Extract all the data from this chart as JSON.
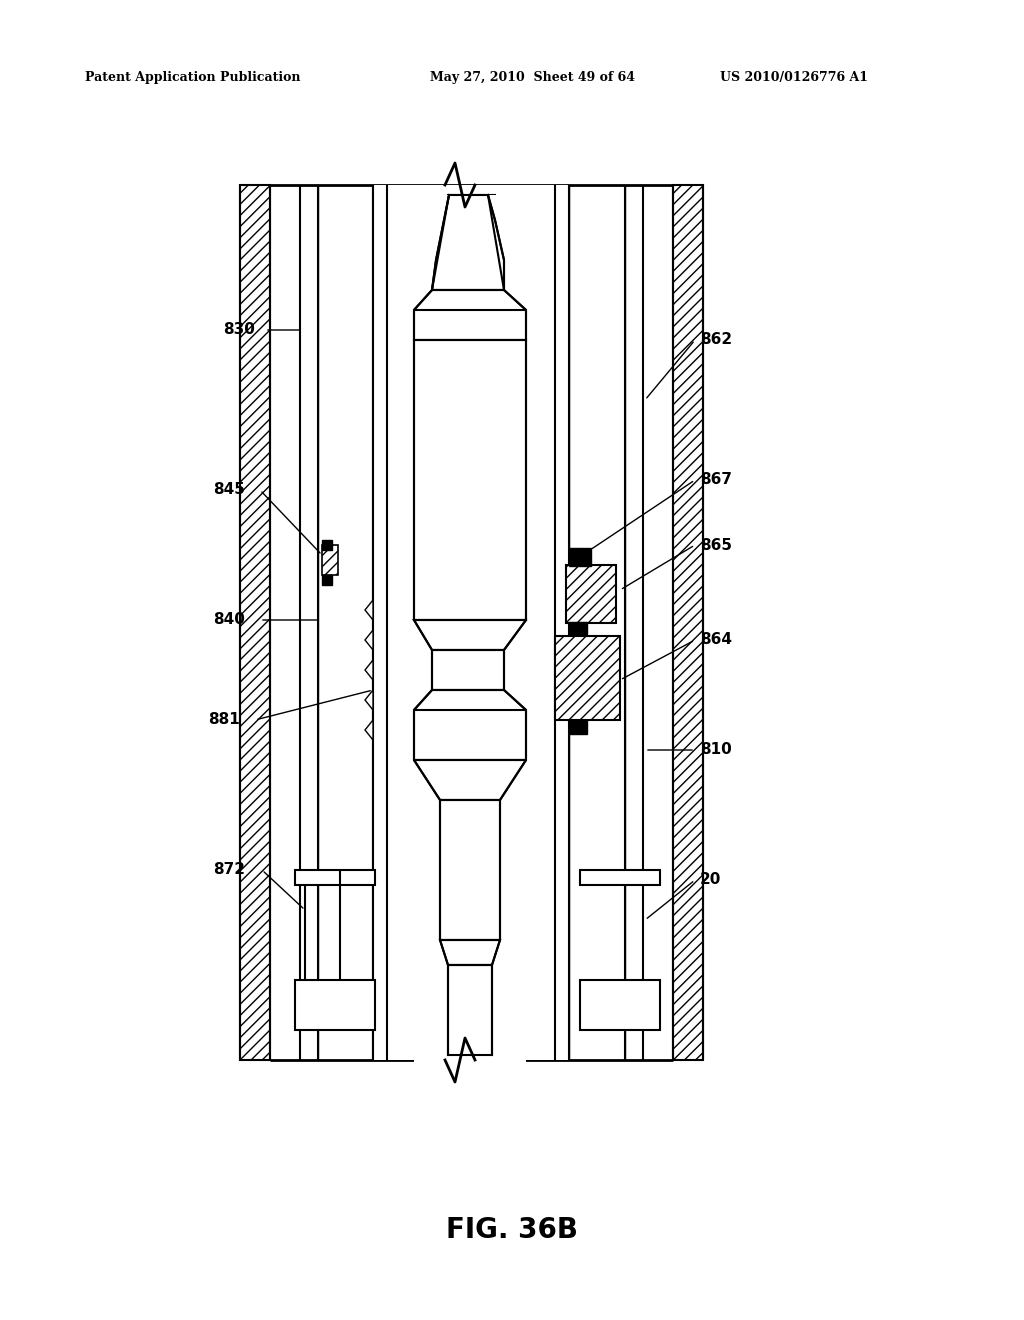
{
  "bg_color": "#ffffff",
  "header_left": "Patent Application Publication",
  "header_mid": "May 27, 2010  Sheet 49 of 64",
  "header_right": "US 2010/0126776 A1",
  "figure_label": "FIG. 36B"
}
